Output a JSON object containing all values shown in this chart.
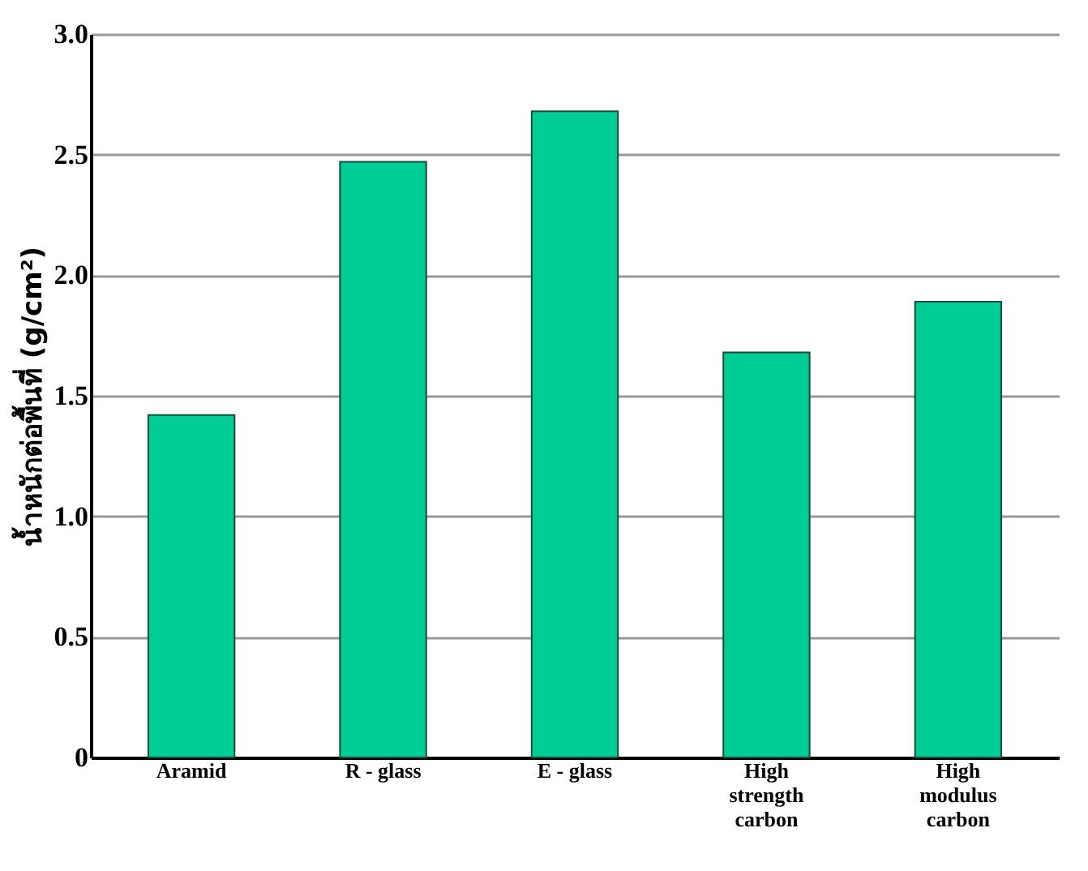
{
  "chart_data": {
    "type": "bar",
    "ylabel": "น้ำหนักต่อพื้นที่ (g/cm²)",
    "categories": [
      "Aramid",
      "R - glass",
      "E - glass",
      "High\nstrength\ncarbon",
      "High\nmodulus\ncarbon"
    ],
    "values": [
      1.42,
      2.47,
      2.68,
      1.68,
      1.89
    ],
    "color": "#00cc96",
    "ylim": [
      0,
      3.0
    ],
    "yticks": [
      0,
      {
        "value": 0.5,
        "label": "0.5"
      },
      {
        "value": 1,
        "label": "1.0"
      },
      {
        "value": 1.5,
        "label": "1.5"
      },
      {
        "value": 2,
        "label": "2.0"
      },
      {
        "value": 2.5,
        "label": "2.5"
      },
      {
        "value": 3,
        "label": "3.0"
      }
    ],
    "grid": "y"
  }
}
